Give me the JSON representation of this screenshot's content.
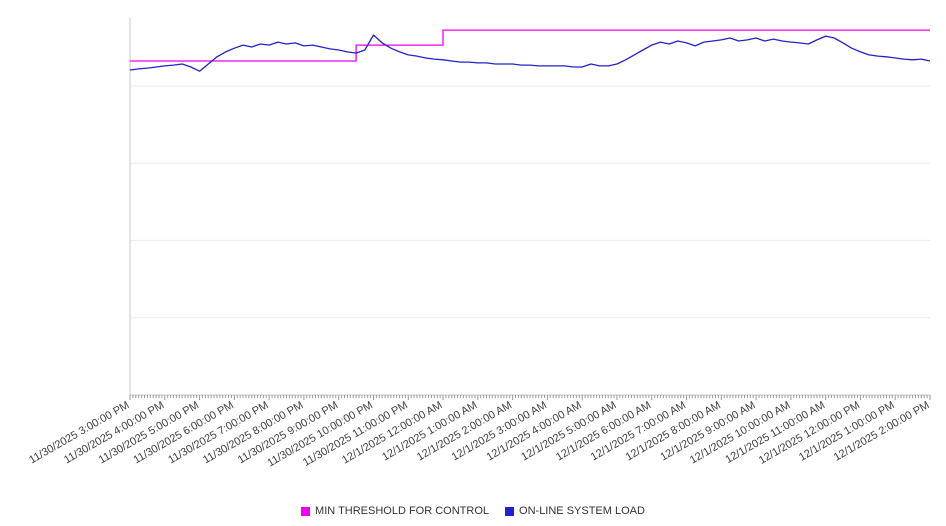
{
  "chart_data": {
    "type": "line",
    "title": "",
    "xlabel": "",
    "ylabel": "",
    "ylim": [
      0,
      100
    ],
    "y_axis_labels_visible": false,
    "grid": true,
    "gridline_values": [
      20.5,
      41,
      61.5,
      82
    ],
    "colors": {
      "gridline": "#ebebeb",
      "axis": "#c8c8c8",
      "tick": "#999999"
    },
    "x_tick_labels": [
      "11/30/2025 3:00:00 PM",
      "11/30/2025 4:00:00 PM",
      "11/30/2025 5:00:00 PM",
      "11/30/2025 6:00:00 PM",
      "11/30/2025 7:00:00 PM",
      "11/30/2025 8:00:00 PM",
      "11/30/2025 9:00:00 PM",
      "11/30/2025 10:00:00 PM",
      "11/30/2025 11:00:00 PM",
      "12/1/2025 12:00:00 AM",
      "12/1/2025 1:00:00 AM",
      "12/1/2025 2:00:00 AM",
      "12/1/2025 3:00:00 AM",
      "12/1/2025 4:00:00 AM",
      "12/1/2025 5:00:00 AM",
      "12/1/2025 6:00:00 AM",
      "12/1/2025 7:00:00 AM",
      "12/1/2025 8:00:00 AM",
      "12/1/2025 9:00:00 AM",
      "12/1/2025 10:00:00 AM",
      "12/1/2025 11:00:00 AM",
      "12/1/2025 12:00:00 PM",
      "12/1/2025 1:00:00 PM",
      "12/1/2025 2:00:00 PM"
    ],
    "series": [
      {
        "name": "MIN THRESHOLD FOR CONTROL",
        "color": "#ee00ee",
        "style": "step",
        "steps": [
          {
            "at_hour": 0,
            "start_label": "11/30/2025 3:00:00 PM",
            "value": 88.6
          },
          {
            "at_hour": 6.5,
            "start_label": "11/30/2025 9:30:00 PM",
            "value": 92.8
          },
          {
            "at_hour": 9,
            "start_label": "12/1/2025 12:00:00 AM",
            "value": 96.8
          }
        ]
      },
      {
        "name": "ON-LINE SYSTEM LOAD",
        "color": "#2222cc",
        "style": "line",
        "sample_interval_minutes": 15,
        "start_label": "11/30/2025 3:00:00 PM",
        "values": [
          86.2,
          86.5,
          86.7,
          87.0,
          87.3,
          87.5,
          87.8,
          87.0,
          85.9,
          87.8,
          89.7,
          91.0,
          92.0,
          92.8,
          92.3,
          93.1,
          92.8,
          93.6,
          93.1,
          93.4,
          92.6,
          92.8,
          92.3,
          91.8,
          91.5,
          91.0,
          90.7,
          91.5,
          95.5,
          93.4,
          92.0,
          91.0,
          90.2,
          89.9,
          89.4,
          89.1,
          88.9,
          88.6,
          88.3,
          88.3,
          88.1,
          88.1,
          87.8,
          87.8,
          87.8,
          87.5,
          87.5,
          87.3,
          87.3,
          87.3,
          87.3,
          87.0,
          87.0,
          87.8,
          87.3,
          87.3,
          87.8,
          88.9,
          90.2,
          91.5,
          92.8,
          93.6,
          93.1,
          93.9,
          93.4,
          92.6,
          93.6,
          93.9,
          94.2,
          94.7,
          93.9,
          94.2,
          94.7,
          93.9,
          94.4,
          93.9,
          93.6,
          93.4,
          93.1,
          94.2,
          95.2,
          94.7,
          93.4,
          92.0,
          91.0,
          90.2,
          89.9,
          89.7,
          89.4,
          89.1,
          88.9,
          89.1,
          88.6
        ]
      }
    ],
    "legend": {
      "position": "bottom",
      "entries": [
        "MIN THRESHOLD FOR CONTROL",
        "ON-LINE SYSTEM LOAD"
      ]
    }
  }
}
